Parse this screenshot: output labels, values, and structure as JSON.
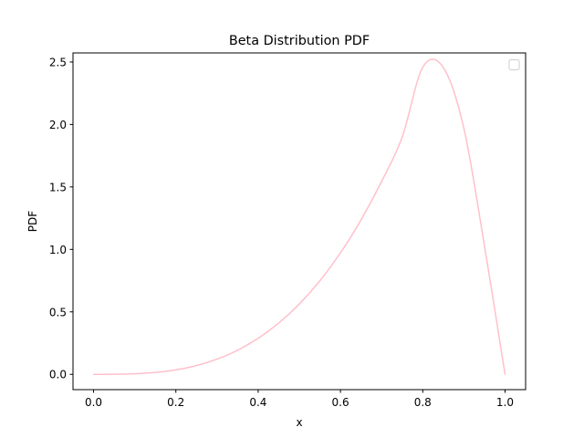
{
  "chart_data": {
    "type": "line",
    "title": "Beta Distribution PDF",
    "xlabel": "x",
    "ylabel": "PDF",
    "xlim": [
      -0.05,
      1.05
    ],
    "ylim": [
      -0.1225,
      2.5725
    ],
    "xticks": [
      0.0,
      0.2,
      0.4,
      0.6,
      0.8,
      1.0
    ],
    "xtick_labels": [
      "0.0",
      "0.2",
      "0.4",
      "0.6",
      "0.8",
      "1.0"
    ],
    "yticks": [
      0.0,
      0.5,
      1.0,
      1.5,
      2.0,
      2.5
    ],
    "ytick_labels": [
      "0.0",
      "0.5",
      "1.0",
      "1.5",
      "2.0",
      "2.5"
    ],
    "grid": false,
    "legend": {
      "placement": "top-right",
      "entries": []
    },
    "series": [
      {
        "color": "#ffc0cb",
        "x": [
          0.0,
          0.05,
          0.1,
          0.15,
          0.2,
          0.25,
          0.3,
          0.35,
          0.4,
          0.45,
          0.5,
          0.55,
          0.6,
          0.65,
          0.7,
          0.75,
          0.8,
          0.85,
          0.9,
          0.95,
          1.0
        ],
        "y": [
          0.0,
          0.0006,
          0.0045,
          0.0152,
          0.0358,
          0.0703,
          0.1215,
          0.1929,
          0.288,
          0.4101,
          0.5625,
          0.7487,
          0.972,
          1.2358,
          1.5435,
          1.8984,
          2.4576,
          2.4564,
          1.9683,
          1.0288,
          0.0
        ]
      }
    ]
  }
}
